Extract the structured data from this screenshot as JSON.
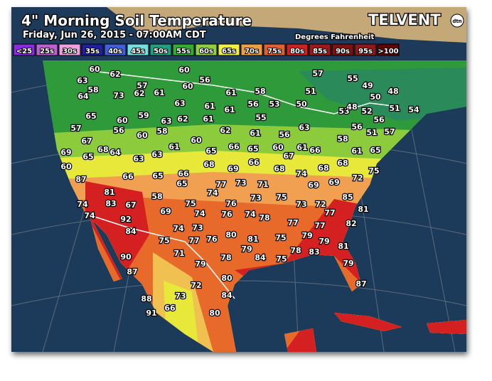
{
  "header": {
    "title": "4\" Morning Soil Temperature",
    "subtitle": "Friday, Jun 26, 2015 - 07:00AM CDT",
    "units": "Degrees Fahrenheit",
    "brand": "TELVENT",
    "brand_badge": "dtn"
  },
  "legend": [
    {
      "label": "<25",
      "color": "#8a2be2"
    },
    {
      "label": "25s",
      "color": "#c060d0"
    },
    {
      "label": "30s",
      "color": "#f0a0e0"
    },
    {
      "label": "35s",
      "color": "#2020a0"
    },
    {
      "label": "40s",
      "color": "#4060e0"
    },
    {
      "label": "45s",
      "color": "#70e0e0"
    },
    {
      "label": "50s",
      "color": "#20a080"
    },
    {
      "label": "55s",
      "color": "#30b030"
    },
    {
      "label": "60s",
      "color": "#90d040"
    },
    {
      "label": "65s",
      "color": "#f0f040"
    },
    {
      "label": "70s",
      "color": "#f0a040"
    },
    {
      "label": "75s",
      "color": "#e06030"
    },
    {
      "label": "80s",
      "color": "#d02020"
    },
    {
      "label": "85s",
      "color": "#a01818"
    },
    {
      "label": "90s",
      "color": "#801010"
    },
    {
      "label": "95s",
      "color": "#901818"
    },
    {
      "label": ">100",
      "color": "#600000"
    }
  ],
  "stations": [
    60,
    62,
    60,
    56,
    57,
    55,
    49,
    63,
    58,
    57,
    60,
    61,
    58,
    51,
    50,
    48,
    61,
    62,
    73,
    64,
    63,
    61,
    61,
    56,
    53,
    50,
    53,
    48,
    52,
    51,
    54,
    65,
    60,
    59,
    63,
    62,
    61,
    55,
    56,
    57,
    56,
    60,
    58,
    62,
    61,
    63,
    56,
    51,
    57,
    56,
    58,
    67,
    61,
    60,
    60,
    61,
    66,
    61,
    65,
    69,
    68,
    64,
    65,
    63,
    63,
    65,
    66,
    65,
    67,
    60,
    66,
    68,
    68,
    69,
    68,
    75,
    87,
    66,
    65,
    66,
    65,
    71,
    73,
    77,
    74,
    68,
    69,
    72,
    69,
    74,
    73,
    75,
    81,
    83,
    67,
    58,
    76,
    85,
    73,
    72,
    74,
    74,
    92,
    69,
    75,
    81,
    74,
    76,
    74,
    78,
    77,
    77,
    82,
    84,
    74,
    73,
    80,
    81,
    75,
    79,
    77,
    75,
    77,
    76,
    79,
    81,
    79,
    84,
    75,
    78,
    83,
    90,
    71,
    79,
    78,
    79,
    87,
    80,
    87,
    72,
    84,
    73,
    88,
    91,
    66,
    80
  ]
}
